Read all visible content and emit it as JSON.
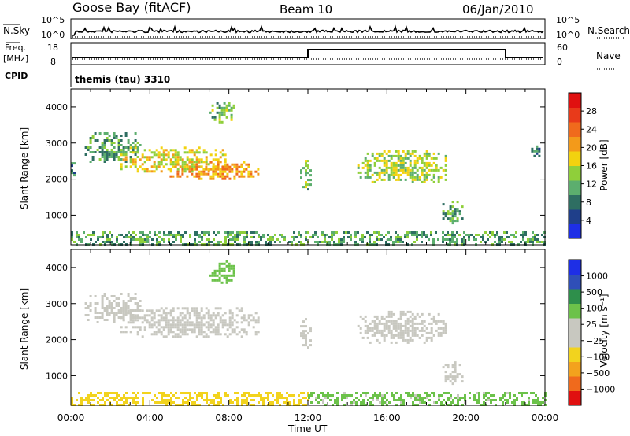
{
  "header": {
    "station": "Goose Bay (fitACF)",
    "beam": "Beam 10",
    "date": "06/Jan/2010"
  },
  "summary": {
    "nsky_label": "N.Sky",
    "nsearch_label": "N.Search",
    "freq_label_1": "Freq.",
    "freq_label_2": "[MHz]",
    "nave_label": "Nave",
    "cpid_label": "CPID",
    "cpid_value": "themis (tau) 3310",
    "noise_ticks": [
      "10^5",
      "10^0"
    ],
    "freq_ticks": [
      "18",
      "8"
    ],
    "nave_ticks": [
      "60",
      "0"
    ]
  },
  "colorbars": {
    "power_label": "Power [dB]",
    "velocity_label": "Velocity [m s⁻¹]",
    "power_colors": [
      "#1e2fe6",
      "#1f3f8a",
      "#2e6e62",
      "#5cae6e",
      "#8fcf3a",
      "#f2d20f",
      "#f39a1a",
      "#f06a1c",
      "#e83a1a",
      "#e01010"
    ],
    "velocity_colors": [
      "#e01010",
      "#f06a1c",
      "#f3a21d",
      "#f2d31e",
      "#c8c8c0",
      "#c8c8c0",
      "#6cc24a",
      "#2e8f4b",
      "#2f4fb8",
      "#1e2fe6"
    ]
  },
  "chart_data": [
    {
      "type": "heatmap",
      "panel": "power",
      "ylabel": "Slant Range [km]",
      "xlabel": "Time UT",
      "xlim": [
        "00:00",
        "24:00"
      ],
      "ylim": [
        180,
        4500
      ],
      "x_ticks": [
        "00:00",
        "04:00",
        "08:00",
        "12:00",
        "16:00",
        "20:00",
        "00:00"
      ],
      "y_ticks": [
        1000,
        2000,
        3000,
        4000
      ],
      "colorbar": {
        "label": "Power [dB]",
        "ticks": [
          4,
          8,
          12,
          16,
          20,
          24,
          28
        ],
        "range": [
          0,
          30
        ]
      },
      "echo_regions": [
        {
          "t_start_h": 0.0,
          "t_end_h": 0.2,
          "range_km": [
            2100,
            2600
          ],
          "value": 8
        },
        {
          "t_start_h": 0.7,
          "t_end_h": 3.5,
          "range_km": [
            2500,
            3300
          ],
          "value": 10
        },
        {
          "t_start_h": 2.5,
          "t_end_h": 8.0,
          "range_km": [
            2200,
            2900
          ],
          "value": 16
        },
        {
          "t_start_h": 5.0,
          "t_end_h": 9.5,
          "range_km": [
            2000,
            2500
          ],
          "value": 20
        },
        {
          "t_start_h": 7.0,
          "t_end_h": 8.3,
          "range_km": [
            3600,
            4200
          ],
          "value": 12
        },
        {
          "t_start_h": 11.6,
          "t_end_h": 12.1,
          "range_km": [
            1700,
            2600
          ],
          "value": 12
        },
        {
          "t_start_h": 14.5,
          "t_end_h": 19.0,
          "range_km": [
            1900,
            2800
          ],
          "value": 14
        },
        {
          "t_start_h": 18.8,
          "t_end_h": 19.8,
          "range_km": [
            800,
            1400
          ],
          "value": 10
        },
        {
          "t_start_h": 23.3,
          "t_end_h": 23.7,
          "range_km": [
            2600,
            3000
          ],
          "value": 8
        },
        {
          "t_start_h": 0.0,
          "t_end_h": 24.0,
          "range_km": [
            180,
            550
          ],
          "value": 10
        }
      ]
    },
    {
      "type": "heatmap",
      "panel": "velocity",
      "ylabel": "Slant Range [km]",
      "xlabel": "Time UT",
      "xlim": [
        "00:00",
        "24:00"
      ],
      "ylim": [
        180,
        4500
      ],
      "x_ticks": [
        "00:00",
        "04:00",
        "08:00",
        "12:00",
        "16:00",
        "20:00",
        "00:00"
      ],
      "y_ticks": [
        1000,
        2000,
        3000,
        4000
      ],
      "colorbar": {
        "label": "Velocity [m s⁻¹]",
        "ticks": [
          -1000,
          -500,
          -100,
          -25,
          25,
          100,
          500,
          1000
        ],
        "tick_labels": [
          "−1000",
          "−500",
          "−100",
          "−25",
          "25",
          "100",
          "500",
          "1000"
        ]
      },
      "echo_regions": [
        {
          "t_start_h": 0.7,
          "t_end_h": 3.5,
          "range_km": [
            2500,
            3300
          ],
          "value": 0
        },
        {
          "t_start_h": 2.5,
          "t_end_h": 9.5,
          "range_km": [
            2100,
            2900
          ],
          "value": 0
        },
        {
          "t_start_h": 7.0,
          "t_end_h": 8.3,
          "range_km": [
            3600,
            4200
          ],
          "value": 60
        },
        {
          "t_start_h": 11.6,
          "t_end_h": 12.1,
          "range_km": [
            1700,
            2600
          ],
          "value": 0
        },
        {
          "t_start_h": 14.5,
          "t_end_h": 19.0,
          "range_km": [
            1900,
            2800
          ],
          "value": 0
        },
        {
          "t_start_h": 18.8,
          "t_end_h": 19.8,
          "range_km": [
            800,
            1400
          ],
          "value": 0
        },
        {
          "t_start_h": 0.0,
          "t_end_h": 12.0,
          "range_km": [
            180,
            550
          ],
          "value": -80
        },
        {
          "t_start_h": 12.0,
          "t_end_h": 24.0,
          "range_km": [
            180,
            550
          ],
          "value": 40
        }
      ]
    }
  ]
}
